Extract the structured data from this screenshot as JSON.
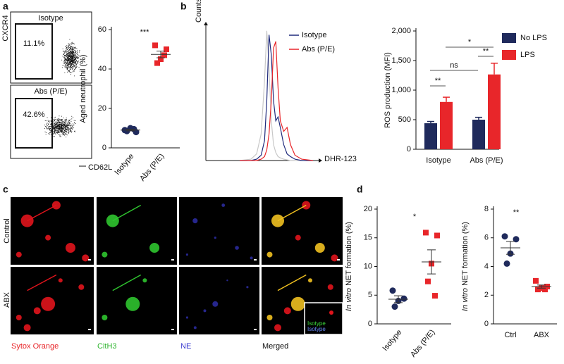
{
  "panel_labels": [
    "a",
    "b",
    "c",
    "d"
  ],
  "flow": {
    "y_label": "CXCR4",
    "x_label": "CD62L",
    "gates": [
      {
        "label": "Isotype",
        "percent": "11.1%"
      },
      {
        "label": "Abs (P/E)",
        "percent": "42.6%"
      }
    ]
  },
  "microscopy": {
    "rows": [
      "Control",
      "ABX"
    ],
    "channels": [
      "Sytox Orange",
      "CitH3",
      "NE",
      "Merged"
    ],
    "inset_labels": [
      "Isotype",
      "Isotype"
    ]
  },
  "chart_data": [
    {
      "type": "scatter",
      "ylabel": "Aged neutrophil (%)",
      "categories": [
        "Isotype",
        "Abs (P/E)"
      ],
      "series": [
        {
          "color": "#1f2a5c",
          "marker": "circle",
          "values": [
            9,
            8,
            10,
            8.5,
            9.5
          ],
          "mean": 9,
          "error": 0.4
        },
        {
          "color": "#e8262a",
          "marker": "square",
          "values": [
            52,
            50,
            45,
            43,
            47
          ],
          "mean": 47.4,
          "error": 1.7
        }
      ],
      "ylim": [
        0,
        60
      ],
      "yticks": [
        0,
        20,
        40,
        60
      ],
      "annotations": [
        "***"
      ]
    },
    {
      "type": "line",
      "ylabel": "Counts",
      "xlabel": "DHR-123",
      "x": [
        30,
        40,
        45,
        49,
        52,
        54,
        56,
        58,
        60,
        62,
        64,
        66,
        69,
        72,
        75,
        79,
        85,
        95
      ],
      "series": [
        {
          "color": "#c8c8c8",
          "values": [
            0,
            1,
            5,
            20,
            60,
            98,
            70,
            30,
            12,
            6,
            3,
            2,
            1,
            0.5,
            0,
            0,
            0,
            0
          ]
        },
        {
          "name": "Isotype",
          "color": "#1f2a7c",
          "values": [
            0,
            0,
            1,
            4,
            15,
            45,
            95,
            80,
            45,
            30,
            33,
            25,
            12,
            5,
            3,
            1,
            0,
            0
          ]
        },
        {
          "name": "Abs (P/E)",
          "color": "#e8262a",
          "values": [
            0,
            0,
            0,
            1,
            3,
            8,
            20,
            45,
            85,
            90,
            55,
            30,
            22,
            25,
            12,
            4,
            1,
            0
          ]
        }
      ],
      "xlim": [
        0,
        100
      ],
      "ylim": [
        0,
        100
      ]
    },
    {
      "type": "bar",
      "ylabel": "ROS production (MFI)",
      "categories": [
        "Isotype",
        "Abs (P/E)"
      ],
      "series": [
        {
          "name": "No LPS",
          "color": "#1f2a5c",
          "values": [
            440,
            500
          ],
          "errors": [
            30,
            40
          ]
        },
        {
          "name": "LPS",
          "color": "#e8262a",
          "values": [
            800,
            1265
          ],
          "errors": [
            80,
            190
          ]
        }
      ],
      "ylim": [
        0,
        2000
      ],
      "yticks": [
        0,
        500,
        {
          "value": 1000,
          "label": "1,000"
        },
        {
          "value": 1500,
          "label": "1,500"
        },
        {
          "value": 2000,
          "label": "2,000"
        }
      ],
      "annotations": [
        "**",
        "ns",
        "*",
        "**"
      ],
      "legend": "right"
    },
    {
      "type": "scatter",
      "ylabel_italic": "In vitro",
      "ylabel": "NET formation (%)",
      "categories": [
        "Isotype",
        "Abs (P/E)"
      ],
      "series": [
        {
          "color": "#1f2a5c",
          "marker": "circle",
          "values": [
            5.8,
            4.4,
            4.0,
            3.0
          ],
          "mean": 4.3,
          "error": 0.6
        },
        {
          "color": "#e8262a",
          "marker": "square",
          "values": [
            15.9,
            15.4,
            10.5,
            7.4,
            4.9
          ],
          "mean": 10.8,
          "error": 2.1
        }
      ],
      "ylim": [
        0,
        20
      ],
      "yticks": [
        0,
        5,
        10,
        15,
        20
      ],
      "annotations": [
        "*"
      ]
    },
    {
      "type": "scatter",
      "ylabel_italic": "In vitro",
      "ylabel": "NET formation (%)",
      "categories": [
        "Ctrl",
        "ABX"
      ],
      "series": [
        {
          "color": "#1f2a5c",
          "marker": "circle",
          "values": [
            6.1,
            5.9,
            4.9,
            4.2
          ],
          "mean": 5.3,
          "error": 0.45
        },
        {
          "color": "#e8262a",
          "marker": "square",
          "values": [
            3.0,
            2.6,
            2.5,
            2.4,
            2.4
          ],
          "mean": 2.6,
          "error": 0.11
        }
      ],
      "ylim": [
        0,
        8
      ],
      "yticks": [
        0,
        2,
        4,
        6,
        8
      ],
      "annotations": [
        "**"
      ]
    }
  ]
}
